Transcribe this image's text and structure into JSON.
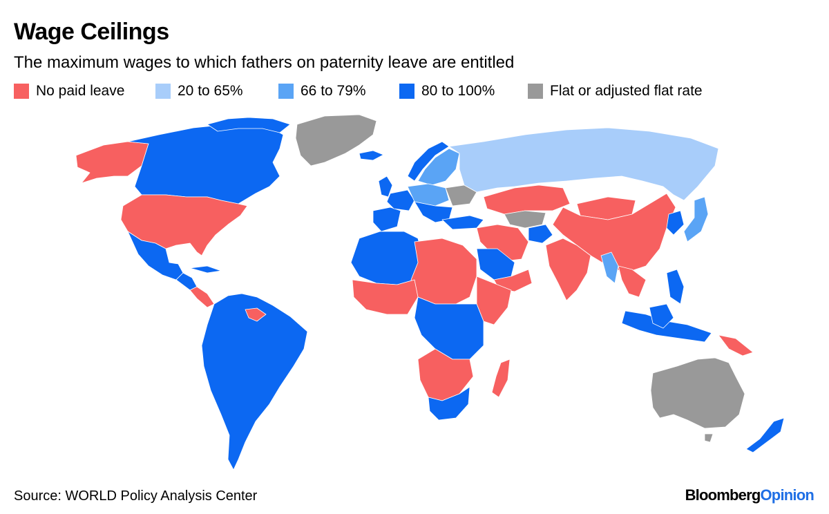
{
  "header": {
    "title": "Wage Ceilings",
    "subtitle": "The maximum wages to which fathers on paternity leave are entitled"
  },
  "legend": [
    {
      "key": "none",
      "label": "No paid leave",
      "color": "#f76060"
    },
    {
      "key": "low",
      "label": "20 to 65%",
      "color": "#a8cdfa"
    },
    {
      "key": "mid",
      "label": "66 to 79%",
      "color": "#5aa4f5"
    },
    {
      "key": "high",
      "label": "80 to 100%",
      "color": "#0c68f2"
    },
    {
      "key": "flat",
      "label": "Flat or adjusted flat rate",
      "color": "#999999"
    }
  ],
  "footer": {
    "source": "Source: WORLD Policy Analysis Center",
    "brand_part1": "Bloomberg",
    "brand_part2": "Opinion"
  }
}
